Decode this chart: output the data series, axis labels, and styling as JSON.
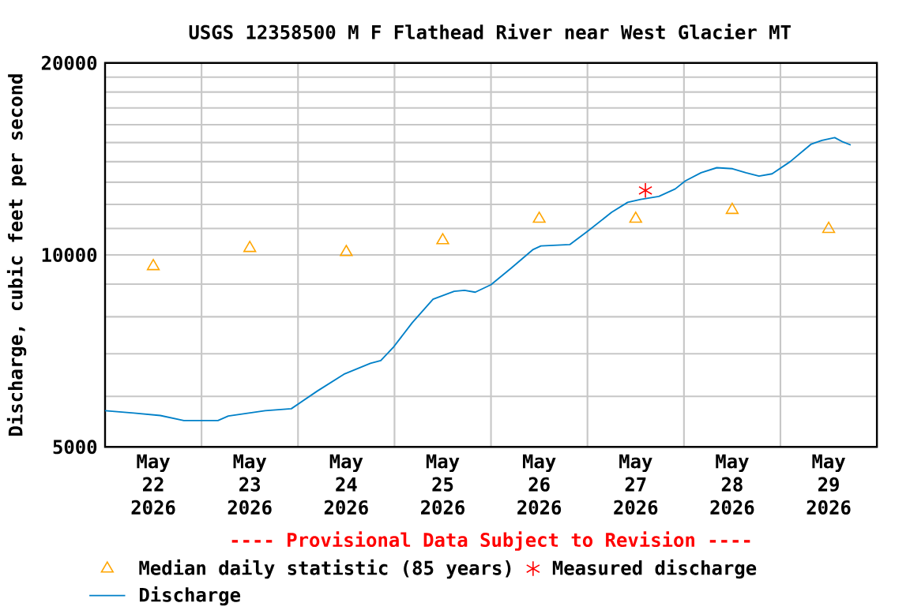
{
  "chart_data": {
    "type": "line",
    "title": "USGS 12358500 M F Flathead River near West Glacier MT",
    "ylabel": "Discharge, cubic feet per second",
    "annotations": [
      "---- Provisional Data Subject to Revision ----"
    ],
    "log": "y",
    "grid": true,
    "legend": "bottom",
    "xlim": [
      "2026-05-22",
      "2026-05-30"
    ],
    "xticks": [
      {
        "value": "2026-05-22T12:00",
        "label": "May 22 2026"
      },
      {
        "value": "2026-05-23T12:00",
        "label": "May 23 2026"
      },
      {
        "value": "2026-05-24T12:00",
        "label": "May 24 2026"
      },
      {
        "value": "2026-05-25T12:00",
        "label": "May 25 2026"
      },
      {
        "value": "2026-05-26T12:00",
        "label": "May 26 2026"
      },
      {
        "value": "2026-05-27T12:00",
        "label": "May 27 2026"
      },
      {
        "value": "2026-05-28T12:00",
        "label": "May 28 2026"
      },
      {
        "value": "2026-05-29T12:00",
        "label": "May 29 2026"
      },
      {
        "value": "2026-05-23",
        "label": null
      },
      {
        "value": "2026-05-24",
        "label": null
      },
      {
        "value": "2026-05-25",
        "label": null
      },
      {
        "value": "2026-05-26",
        "label": null
      },
      {
        "value": "2026-05-27",
        "label": null
      },
      {
        "value": "2026-05-28",
        "label": null
      },
      {
        "value": "2026-05-29",
        "label": null
      }
    ],
    "ylim": [
      5000,
      20000
    ],
    "yticks": [
      5000,
      10000,
      20000,
      {
        "value": 6000,
        "label": null
      },
      {
        "value": 7000,
        "label": null
      },
      {
        "value": 8000,
        "label": null
      },
      {
        "value": 9000,
        "label": null
      },
      {
        "value": 11000,
        "label": null
      },
      {
        "value": 12000,
        "label": null
      },
      {
        "value": 13000,
        "label": null
      },
      {
        "value": 14000,
        "label": null
      },
      {
        "value": 15000,
        "label": null
      },
      {
        "value": 16000,
        "label": null
      },
      {
        "value": 17000,
        "label": null
      },
      {
        "value": 18000,
        "label": null
      },
      {
        "value": 19000,
        "label": null
      }
    ],
    "series": [
      {
        "name": "Median daily statistic (85 years)",
        "type": "scatter",
        "marker": "triangle",
        "color": "#ffa500",
        "x": [
          "2026-05-22T12:00",
          "2026-05-23T12:00",
          "2026-05-24T12:00",
          "2026-05-25T12:00",
          "2026-05-26T12:00",
          "2026-05-27T12:00",
          "2026-05-28T12:00",
          "2026-05-29T12:00"
        ],
        "values": [
          9600,
          10250,
          10100,
          10540,
          11390,
          11390,
          11760,
          10980
        ]
      },
      {
        "name": "Measured discharge",
        "type": "scatter",
        "marker": "cross",
        "color": "#ff0000",
        "x": [
          "2026-05-27T14:25"
        ],
        "values": [
          12620
        ]
      },
      {
        "name": "Discharge",
        "marker": "none",
        "color": "#0080c8",
        "x": [
          "2026-05-22T00:00",
          "2026-05-22T07:10",
          "2026-05-22T13:45",
          "2026-05-22T19:35",
          "2026-05-23T04:05",
          "2026-05-23T06:40",
          "2026-05-23T15:50",
          "2026-05-23T22:20",
          "2026-05-24T04:50",
          "2026-05-24T11:25",
          "2026-05-24T18:00",
          "2026-05-24T20:35",
          "2026-05-24T23:50",
          "2026-05-25T04:25",
          "2026-05-25T09:35",
          "2026-05-25T14:50",
          "2026-05-25T17:25",
          "2026-05-25T20:05",
          "2026-05-26T00:00",
          "2026-05-26T05:05",
          "2026-05-26T10:30",
          "2026-05-26T12:25",
          "2026-05-26T19:35",
          "2026-05-27T00:10",
          "2026-05-27T06:00",
          "2026-05-27T10:00",
          "2026-05-27T13:15",
          "2026-05-27T17:45",
          "2026-05-27T21:50",
          "2026-05-28T00:20",
          "2026-05-28T04:15",
          "2026-05-28T08:10",
          "2026-05-28T12:05",
          "2026-05-28T15:25",
          "2026-05-28T18:40",
          "2026-05-28T21:55",
          "2026-05-29T02:25",
          "2026-05-29T07:40",
          "2026-05-29T10:20",
          "2026-05-29T13:30",
          "2026-05-29T15:35",
          "2026-05-29T17:30"
        ],
        "values": [
          5700,
          5650,
          5600,
          5500,
          5500,
          5590,
          5700,
          5740,
          6120,
          6500,
          6760,
          6830,
          7180,
          7830,
          8520,
          8770,
          8800,
          8740,
          8980,
          9540,
          10200,
          10330,
          10380,
          10910,
          11660,
          12090,
          12220,
          12350,
          12690,
          13060,
          13450,
          13700,
          13650,
          13450,
          13290,
          13400,
          14000,
          14920,
          15120,
          15270,
          15030,
          14870
        ]
      }
    ]
  }
}
